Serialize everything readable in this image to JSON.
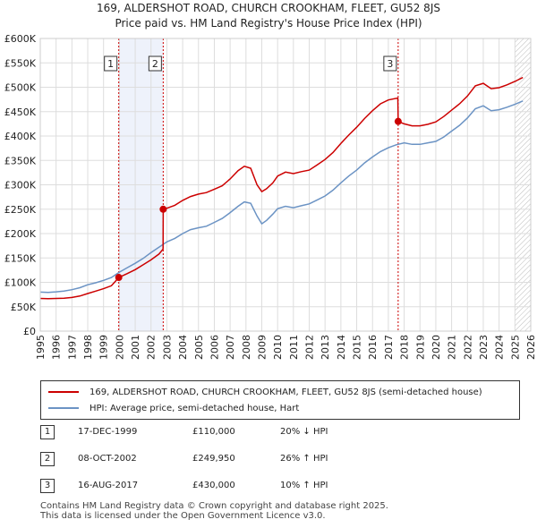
{
  "chart_data": {
    "type": "line",
    "title": "169, ALDERSHOT ROAD, CHURCH CROOKHAM, FLEET, GU52 8JS",
    "subtitle": "Price paid vs. HM Land Registry's House Price Index (HPI)",
    "xlim": [
      1995,
      2026
    ],
    "ylim": [
      0,
      600000
    ],
    "x_ticks": [
      "1995",
      "1996",
      "1997",
      "1998",
      "1999",
      "2000",
      "2001",
      "2002",
      "2003",
      "2004",
      "2005",
      "2006",
      "2007",
      "2008",
      "2009",
      "2010",
      "2011",
      "2012",
      "2013",
      "2014",
      "2015",
      "2016",
      "2017",
      "2018",
      "2019",
      "2020",
      "2021",
      "2022",
      "2023",
      "2024",
      "2025",
      "2026"
    ],
    "y_ticks": [
      {
        "value": 0,
        "label": "£0"
      },
      {
        "value": 50000,
        "label": "£50K"
      },
      {
        "value": 100000,
        "label": "£100K"
      },
      {
        "value": 150000,
        "label": "£150K"
      },
      {
        "value": 200000,
        "label": "£200K"
      },
      {
        "value": 250000,
        "label": "£250K"
      },
      {
        "value": 300000,
        "label": "£300K"
      },
      {
        "value": 350000,
        "label": "£350K"
      },
      {
        "value": 400000,
        "label": "£400K"
      },
      {
        "value": 450000,
        "label": "£450K"
      },
      {
        "value": 500000,
        "label": "£500K"
      },
      {
        "value": 550000,
        "label": "£550K"
      },
      {
        "value": 600000,
        "label": "£600K"
      }
    ],
    "grid": true,
    "shaded_spans": [
      [
        1999.96,
        2002.77
      ]
    ],
    "hatched_from": 2025.0,
    "series": [
      {
        "name": "169, ALDERSHOT ROAD, CHURCH CROOKHAM, FLEET, GU52 8JS (semi-detached house)",
        "color": "#cc0000",
        "points": [
          [
            1995.0,
            67000
          ],
          [
            1995.5,
            66500
          ],
          [
            1996.0,
            67000
          ],
          [
            1996.5,
            67500
          ],
          [
            1997.0,
            69000
          ],
          [
            1997.5,
            72000
          ],
          [
            1998.0,
            77000
          ],
          [
            1998.5,
            82000
          ],
          [
            1999.0,
            87000
          ],
          [
            1999.5,
            93000
          ],
          [
            1999.96,
            110000
          ],
          [
            2000.5,
            118000
          ],
          [
            2001.0,
            126000
          ],
          [
            2001.5,
            136000
          ],
          [
            2002.0,
            146000
          ],
          [
            2002.5,
            158000
          ],
          [
            2002.76,
            168000
          ],
          [
            2002.77,
            249950
          ],
          [
            2003.0,
            252000
          ],
          [
            2003.5,
            258000
          ],
          [
            2004.0,
            268000
          ],
          [
            2004.5,
            276000
          ],
          [
            2005.0,
            281000
          ],
          [
            2005.5,
            284000
          ],
          [
            2006.0,
            291000
          ],
          [
            2006.5,
            298000
          ],
          [
            2007.0,
            312000
          ],
          [
            2007.5,
            329000
          ],
          [
            2007.9,
            338000
          ],
          [
            2008.3,
            334000
          ],
          [
            2008.7,
            300000
          ],
          [
            2009.0,
            286000
          ],
          [
            2009.3,
            292000
          ],
          [
            2009.7,
            304000
          ],
          [
            2010.0,
            318000
          ],
          [
            2010.5,
            326000
          ],
          [
            2011.0,
            323000
          ],
          [
            2011.5,
            327000
          ],
          [
            2012.0,
            330000
          ],
          [
            2012.5,
            341000
          ],
          [
            2013.0,
            352000
          ],
          [
            2013.5,
            366000
          ],
          [
            2014.0,
            385000
          ],
          [
            2014.5,
            402000
          ],
          [
            2015.0,
            418000
          ],
          [
            2015.5,
            436000
          ],
          [
            2016.0,
            452000
          ],
          [
            2016.5,
            466000
          ],
          [
            2017.0,
            474000
          ],
          [
            2017.6,
            478000
          ],
          [
            2017.62,
            430000
          ],
          [
            2018.0,
            425000
          ],
          [
            2018.5,
            421000
          ],
          [
            2019.0,
            421000
          ],
          [
            2019.5,
            424000
          ],
          [
            2020.0,
            429000
          ],
          [
            2020.5,
            440000
          ],
          [
            2021.0,
            453000
          ],
          [
            2021.5,
            466000
          ],
          [
            2022.0,
            482000
          ],
          [
            2022.5,
            503000
          ],
          [
            2023.0,
            508000
          ],
          [
            2023.5,
            497000
          ],
          [
            2024.0,
            499000
          ],
          [
            2024.5,
            505000
          ],
          [
            2025.0,
            512000
          ],
          [
            2025.5,
            520000
          ]
        ]
      },
      {
        "name": "HPI: Average price, semi-detached house, Hart",
        "color": "#6b93c4",
        "points": [
          [
            1995.0,
            80000
          ],
          [
            1995.5,
            79500
          ],
          [
            1996.0,
            80500
          ],
          [
            1996.5,
            82000
          ],
          [
            1997.0,
            85000
          ],
          [
            1997.5,
            89000
          ],
          [
            1998.0,
            95000
          ],
          [
            1998.5,
            99000
          ],
          [
            1999.0,
            104000
          ],
          [
            1999.5,
            110000
          ],
          [
            2000.0,
            121000
          ],
          [
            2000.5,
            130000
          ],
          [
            2001.0,
            139000
          ],
          [
            2001.5,
            149000
          ],
          [
            2002.0,
            161000
          ],
          [
            2002.5,
            172000
          ],
          [
            2003.0,
            183000
          ],
          [
            2003.5,
            190000
          ],
          [
            2004.0,
            200000
          ],
          [
            2004.5,
            208000
          ],
          [
            2005.0,
            212000
          ],
          [
            2005.5,
            215000
          ],
          [
            2006.0,
            223000
          ],
          [
            2006.5,
            231000
          ],
          [
            2007.0,
            243000
          ],
          [
            2007.5,
            256000
          ],
          [
            2007.9,
            265000
          ],
          [
            2008.3,
            262000
          ],
          [
            2008.7,
            236000
          ],
          [
            2009.0,
            220000
          ],
          [
            2009.3,
            227000
          ],
          [
            2009.7,
            240000
          ],
          [
            2010.0,
            251000
          ],
          [
            2010.5,
            256000
          ],
          [
            2011.0,
            253000
          ],
          [
            2011.5,
            257000
          ],
          [
            2012.0,
            261000
          ],
          [
            2012.5,
            269000
          ],
          [
            2013.0,
            277000
          ],
          [
            2013.5,
            289000
          ],
          [
            2014.0,
            304000
          ],
          [
            2014.5,
            318000
          ],
          [
            2015.0,
            330000
          ],
          [
            2015.5,
            345000
          ],
          [
            2016.0,
            357000
          ],
          [
            2016.5,
            368000
          ],
          [
            2017.0,
            376000
          ],
          [
            2017.5,
            382000
          ],
          [
            2018.0,
            386000
          ],
          [
            2018.5,
            383000
          ],
          [
            2019.0,
            383000
          ],
          [
            2019.5,
            386000
          ],
          [
            2020.0,
            389000
          ],
          [
            2020.5,
            398000
          ],
          [
            2021.0,
            410000
          ],
          [
            2021.5,
            422000
          ],
          [
            2022.0,
            437000
          ],
          [
            2022.5,
            456000
          ],
          [
            2023.0,
            462000
          ],
          [
            2023.5,
            452000
          ],
          [
            2024.0,
            454000
          ],
          [
            2024.5,
            459000
          ],
          [
            2025.0,
            465000
          ],
          [
            2025.5,
            472000
          ]
        ]
      }
    ],
    "markers": [
      {
        "label": "1",
        "x": 1999.96,
        "y": 110000
      },
      {
        "label": "2",
        "x": 2002.77,
        "y": 249950
      },
      {
        "label": "3",
        "x": 2017.62,
        "y": 430000
      }
    ]
  },
  "legend": {
    "property_label": "169, ALDERSHOT ROAD, CHURCH CROOKHAM, FLEET, GU52 8JS (semi-detached house)",
    "hpi_label": "HPI: Average price, semi-detached house, Hart",
    "property_color": "#cc0000",
    "hpi_color": "#6b93c4"
  },
  "sales": [
    {
      "num": "1",
      "date": "17-DEC-1999",
      "price": "£110,000",
      "hpi": "20% ↓ HPI"
    },
    {
      "num": "2",
      "date": "08-OCT-2002",
      "price": "£249,950",
      "hpi": "26% ↑ HPI"
    },
    {
      "num": "3",
      "date": "16-AUG-2017",
      "price": "£430,000",
      "hpi": "10% ↑ HPI"
    }
  ],
  "footer": {
    "line1": "Contains HM Land Registry data © Crown copyright and database right 2025.",
    "line2": "This data is licensed under the Open Government Licence v3.0."
  }
}
